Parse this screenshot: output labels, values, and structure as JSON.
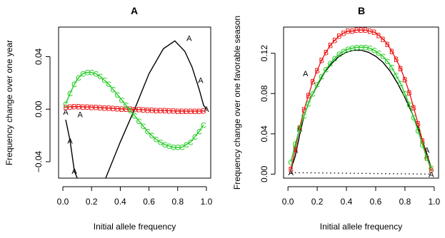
{
  "colors": {
    "A": "#000000",
    "B": "#ee1111",
    "C": "#22cc22"
  },
  "chart_data": [
    {
      "type": "line",
      "title": "A",
      "xlabel": "Initial allele frequency",
      "ylabel": "Frequency change over one year",
      "xlim": [
        -0.03,
        1.03
      ],
      "ylim": [
        -0.0525,
        0.0625
      ],
      "xticks": [
        0.0,
        0.2,
        0.4,
        0.6,
        0.8,
        1.0
      ],
      "xtick_labels": [
        "0.0",
        "0.2",
        "0.4",
        "0.6",
        "0.8",
        "1.0"
      ],
      "yticks": [
        -0.04,
        0.0,
        0.04
      ],
      "ytick_labels": [
        "−0.04",
        "0.00",
        "0.04"
      ],
      "grid": false,
      "series": [
        {
          "marker": "A",
          "color": "#000000",
          "x": [
            0.02,
            0.05,
            0.08,
            0.12,
            0.2,
            0.3,
            0.4,
            0.5,
            0.6,
            0.7,
            0.78,
            0.85,
            0.9,
            0.95,
            0.98,
            1.0
          ],
          "y": [
            -0.008,
            -0.024,
            -0.047,
            -0.058,
            -0.075,
            -0.052,
            -0.025,
            0.0,
            0.027,
            0.046,
            0.052,
            0.044,
            0.032,
            0.015,
            0.003,
            0.0
          ],
          "marker_points": [
            [
              0.02,
              -0.002
            ],
            [
              0.05,
              -0.024
            ],
            [
              0.08,
              -0.047
            ],
            [
              0.12,
              -0.004
            ],
            [
              0.88,
              0.054
            ],
            [
              0.96,
              0.022
            ],
            [
              1.0,
              0.0
            ]
          ]
        },
        {
          "marker": "B",
          "color": "#ee1111",
          "x": [
            0.02,
            0.05,
            0.08,
            0.11,
            0.14,
            0.17,
            0.2,
            0.23,
            0.26,
            0.29,
            0.32,
            0.35,
            0.38,
            0.41,
            0.44,
            0.47,
            0.5,
            0.53,
            0.56,
            0.59,
            0.62,
            0.65,
            0.68,
            0.71,
            0.74,
            0.77,
            0.8,
            0.83,
            0.86,
            0.89,
            0.92,
            0.95,
            0.98
          ],
          "y": [
            0.0015,
            0.0018,
            0.0019,
            0.0019,
            0.0018,
            0.0017,
            0.0016,
            0.0014,
            0.0012,
            0.001,
            0.0008,
            0.0006,
            0.0004,
            0.0002,
            0.0001,
            0.0,
            -0.0001,
            -0.0002,
            -0.0004,
            -0.0006,
            -0.0008,
            -0.0009,
            -0.001,
            -0.0011,
            -0.0012,
            -0.0013,
            -0.0014,
            -0.0014,
            -0.0015,
            -0.0015,
            -0.0015,
            -0.0014,
            -0.0013
          ],
          "marker_points": "same as line points"
        },
        {
          "marker": "C",
          "color": "#22cc22",
          "x": [
            0.02,
            0.05,
            0.08,
            0.11,
            0.14,
            0.17,
            0.2,
            0.23,
            0.26,
            0.29,
            0.32,
            0.35,
            0.38,
            0.41,
            0.44,
            0.47,
            0.5,
            0.53,
            0.56,
            0.59,
            0.62,
            0.65,
            0.68,
            0.71,
            0.74,
            0.77,
            0.8,
            0.83,
            0.86,
            0.89,
            0.92,
            0.95,
            0.98
          ],
          "y": [
            0.004,
            0.012,
            0.019,
            0.024,
            0.027,
            0.028,
            0.028,
            0.027,
            0.025,
            0.022,
            0.019,
            0.015,
            0.011,
            0.007,
            0.003,
            -0.001,
            -0.005,
            -0.009,
            -0.013,
            -0.017,
            -0.02,
            -0.023,
            -0.025,
            -0.027,
            -0.028,
            -0.029,
            -0.029,
            -0.029,
            -0.027,
            -0.025,
            -0.021,
            -0.017,
            -0.012
          ],
          "marker_points": "same as line points"
        }
      ],
      "dotted_zero_line": false
    },
    {
      "type": "line",
      "title": "B",
      "xlabel": "Initial allele frequency",
      "ylabel": "Frequency change over one favorable season",
      "xlim": [
        -0.03,
        1.03
      ],
      "ylim": [
        -0.004,
        0.146
      ],
      "xticks": [
        0.0,
        0.2,
        0.4,
        0.6,
        0.8,
        1.0
      ],
      "xtick_labels": [
        "0.0",
        "0.2",
        "0.4",
        "0.6",
        "0.8",
        "1.0"
      ],
      "yticks": [
        0.0,
        0.04,
        0.08,
        0.12
      ],
      "ytick_labels": [
        "0.00",
        "0.04",
        "0.08",
        "0.12"
      ],
      "grid": false,
      "series": [
        {
          "marker": "A",
          "color": "#000000",
          "x": [
            0.02,
            0.05,
            0.08,
            0.11,
            0.15,
            0.2,
            0.25,
            0.3,
            0.35,
            0.4,
            0.45,
            0.5,
            0.55,
            0.6,
            0.65,
            0.7,
            0.75,
            0.8,
            0.85,
            0.9,
            0.95,
            0.98
          ],
          "y": [
            0.0045,
            0.018,
            0.039,
            0.058,
            0.074,
            0.088,
            0.101,
            0.11,
            0.117,
            0.121,
            0.123,
            0.123,
            0.121,
            0.117,
            0.111,
            0.102,
            0.09,
            0.076,
            0.06,
            0.042,
            0.02,
            0.006
          ],
          "marker_points": [
            [
              0.02,
              0.0015
            ],
            [
              0.05,
              0.024
            ],
            [
              0.08,
              0.045
            ],
            [
              0.12,
              0.1
            ],
            [
              0.95,
              0.024
            ],
            [
              0.98,
              0.0
            ]
          ]
        },
        {
          "marker": "B",
          "color": "#ee1111",
          "x": [
            0.02,
            0.05,
            0.08,
            0.11,
            0.14,
            0.17,
            0.2,
            0.23,
            0.26,
            0.29,
            0.32,
            0.35,
            0.38,
            0.41,
            0.44,
            0.47,
            0.5,
            0.53,
            0.56,
            0.59,
            0.62,
            0.65,
            0.68,
            0.71,
            0.74,
            0.77,
            0.8,
            0.83,
            0.86,
            0.89,
            0.92,
            0.95,
            0.98
          ],
          "y": [
            0.005,
            0.025,
            0.046,
            0.064,
            0.078,
            0.092,
            0.103,
            0.113,
            0.121,
            0.128,
            0.133,
            0.137,
            0.14,
            0.142,
            0.142,
            0.143,
            0.143,
            0.143,
            0.142,
            0.141,
            0.138,
            0.134,
            0.129,
            0.122,
            0.114,
            0.105,
            0.094,
            0.081,
            0.066,
            0.05,
            0.033,
            0.016,
            0.004
          ],
          "marker_points": "same as line points"
        },
        {
          "marker": "C",
          "color": "#22cc22",
          "x": [
            0.02,
            0.05,
            0.08,
            0.11,
            0.14,
            0.17,
            0.2,
            0.23,
            0.26,
            0.29,
            0.32,
            0.35,
            0.38,
            0.41,
            0.44,
            0.47,
            0.5,
            0.53,
            0.56,
            0.59,
            0.62,
            0.65,
            0.68,
            0.71,
            0.74,
            0.77,
            0.8,
            0.83,
            0.86,
            0.89,
            0.92,
            0.95,
            0.98
          ],
          "y": [
            0.012,
            0.03,
            0.045,
            0.058,
            0.07,
            0.08,
            0.089,
            0.097,
            0.104,
            0.11,
            0.115,
            0.119,
            0.122,
            0.124,
            0.125,
            0.126,
            0.126,
            0.126,
            0.125,
            0.123,
            0.12,
            0.117,
            0.112,
            0.106,
            0.098,
            0.09,
            0.08,
            0.069,
            0.056,
            0.043,
            0.029,
            0.016,
            0.006
          ],
          "marker_points": "same as line points"
        }
      ],
      "dotted_zero_line": true
    }
  ]
}
